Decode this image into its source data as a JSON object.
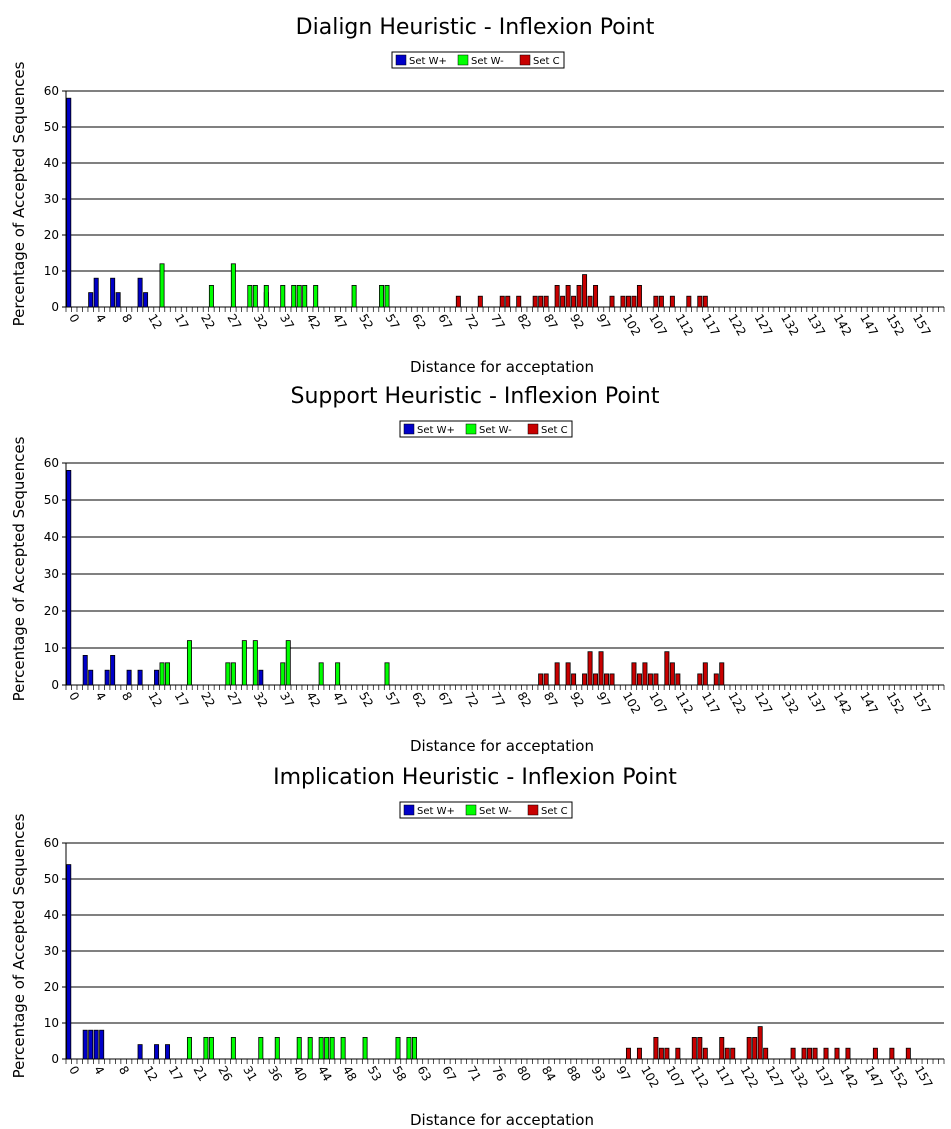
{
  "chart_data": [
    {
      "type": "bar",
      "title": "Dialign Heuristic - Inflexion Point",
      "xlabel": "Distance for acceptation",
      "ylabel": "Percentage of Accepted Sequences",
      "ylim": [
        0,
        60
      ],
      "yticks": [
        0,
        10,
        20,
        30,
        40,
        50,
        60
      ],
      "xlim": [
        0,
        160
      ],
      "xtick_labels": [
        "0",
        "4",
        "8",
        "12",
        "17",
        "22",
        "27",
        "32",
        "37",
        "42",
        "47",
        "52",
        "57",
        "62",
        "67",
        "72",
        "77",
        "82",
        "87",
        "92",
        "97",
        "102",
        "107",
        "112",
        "117",
        "122",
        "127",
        "132",
        "137",
        "142",
        "147",
        "152",
        "157"
      ],
      "grid": true,
      "legend_position": "top-center",
      "series": [
        {
          "name": "Set W+",
          "color": "#0000c8",
          "x": [
            0,
            4,
            5,
            8,
            9,
            13,
            14,
            36
          ],
          "values": [
            58,
            4,
            8,
            8,
            4,
            8,
            4,
            4
          ]
        },
        {
          "name": "Set W-",
          "color": "#00ff00",
          "x": [
            17,
            26,
            30,
            33,
            34,
            36,
            39,
            41,
            42,
            43,
            45,
            52,
            57,
            58
          ],
          "values": [
            12,
            6,
            12,
            6,
            6,
            6,
            6,
            6,
            6,
            6,
            6,
            6,
            6,
            6
          ]
        },
        {
          "name": "Set C",
          "color": "#c80000",
          "x": [
            71,
            75,
            79,
            80,
            82,
            85,
            86,
            87,
            89,
            90,
            91,
            92,
            93,
            94,
            95,
            96,
            99,
            101,
            102,
            103,
            104,
            107,
            108,
            110,
            113,
            115,
            116
          ],
          "values": [
            3,
            3,
            3,
            3,
            3,
            3,
            3,
            3,
            6,
            3,
            6,
            3,
            6,
            9,
            3,
            6,
            3,
            3,
            3,
            3,
            6,
            3,
            3,
            3,
            3,
            3,
            3
          ]
        }
      ]
    },
    {
      "type": "bar",
      "title": "Support Heuristic - Inflexion Point",
      "xlabel": "Distance for acceptation",
      "ylabel": "Percentage of Accepted Sequences",
      "ylim": [
        0,
        60
      ],
      "yticks": [
        0,
        10,
        20,
        30,
        40,
        50,
        60
      ],
      "xlim": [
        0,
        160
      ],
      "xtick_labels": [
        "0",
        "4",
        "8",
        "12",
        "17",
        "22",
        "27",
        "32",
        "37",
        "42",
        "47",
        "52",
        "57",
        "62",
        "67",
        "72",
        "77",
        "82",
        "87",
        "92",
        "97",
        "102",
        "107",
        "112",
        "117",
        "122",
        "127",
        "132",
        "137",
        "142",
        "147",
        "152",
        "157"
      ],
      "grid": true,
      "legend_position": "top-center",
      "series": [
        {
          "name": "Set W+",
          "color": "#0000c8",
          "x": [
            0,
            3,
            4,
            7,
            8,
            11,
            13,
            16,
            35
          ],
          "values": [
            58,
            8,
            4,
            4,
            8,
            4,
            4,
            4,
            4
          ]
        },
        {
          "name": "Set W-",
          "color": "#00ff00",
          "x": [
            17,
            18,
            22,
            29,
            30,
            32,
            34,
            39,
            40,
            46,
            49,
            58
          ],
          "values": [
            6,
            6,
            12,
            6,
            6,
            12,
            12,
            6,
            12,
            6,
            6,
            6
          ]
        },
        {
          "name": "Set C",
          "color": "#c80000",
          "x": [
            86,
            87,
            89,
            91,
            92,
            94,
            95,
            96,
            97,
            98,
            99,
            103,
            104,
            105,
            106,
            107,
            109,
            110,
            111,
            115,
            116,
            118,
            119
          ],
          "values": [
            3,
            3,
            6,
            6,
            3,
            3,
            9,
            3,
            9,
            3,
            3,
            6,
            3,
            6,
            3,
            3,
            9,
            6,
            3,
            3,
            6,
            3,
            6
          ]
        }
      ]
    },
    {
      "type": "bar",
      "title": "Implication Heuristic - Inflexion Point",
      "xlabel": "Distance for acceptation",
      "ylabel": "Percentage of Accepted Sequences",
      "ylim": [
        0,
        60
      ],
      "yticks": [
        0,
        10,
        20,
        30,
        40,
        50,
        60
      ],
      "xlim": [
        0,
        160
      ],
      "xtick_labels": [
        "0",
        "4",
        "8",
        "12",
        "17",
        "21",
        "26",
        "31",
        "36",
        "40",
        "44",
        "48",
        "53",
        "58",
        "63",
        "67",
        "71",
        "76",
        "80",
        "84",
        "88",
        "93",
        "97",
        "102",
        "107",
        "112",
        "117",
        "122",
        "127",
        "132",
        "137",
        "142",
        "147",
        "152",
        "157"
      ],
      "grid": true,
      "legend_position": "top-center",
      "series": [
        {
          "name": "Set W+",
          "color": "#0000c8",
          "x": [
            0,
            3,
            4,
            5,
            6,
            13,
            16,
            18
          ],
          "values": [
            54,
            8,
            8,
            8,
            8,
            4,
            4,
            4
          ]
        },
        {
          "name": "Set W-",
          "color": "#00ff00",
          "x": [
            22,
            25,
            26,
            30,
            35,
            38,
            42,
            44,
            46,
            47,
            48,
            50,
            54,
            60,
            62,
            63
          ],
          "values": [
            6,
            6,
            6,
            6,
            6,
            6,
            6,
            6,
            6,
            6,
            6,
            6,
            6,
            6,
            6,
            6
          ]
        },
        {
          "name": "Set C",
          "color": "#c80000",
          "x": [
            102,
            104,
            107,
            108,
            109,
            111,
            114,
            115,
            116,
            119,
            120,
            121,
            124,
            125,
            126,
            127,
            132,
            134,
            135,
            136,
            138,
            140,
            142,
            147,
            150,
            153
          ],
          "values": [
            3,
            3,
            6,
            3,
            3,
            3,
            6,
            6,
            3,
            6,
            3,
            3,
            6,
            6,
            9,
            3,
            3,
            3,
            3,
            3,
            3,
            3,
            3,
            3,
            3,
            3
          ]
        }
      ]
    }
  ]
}
